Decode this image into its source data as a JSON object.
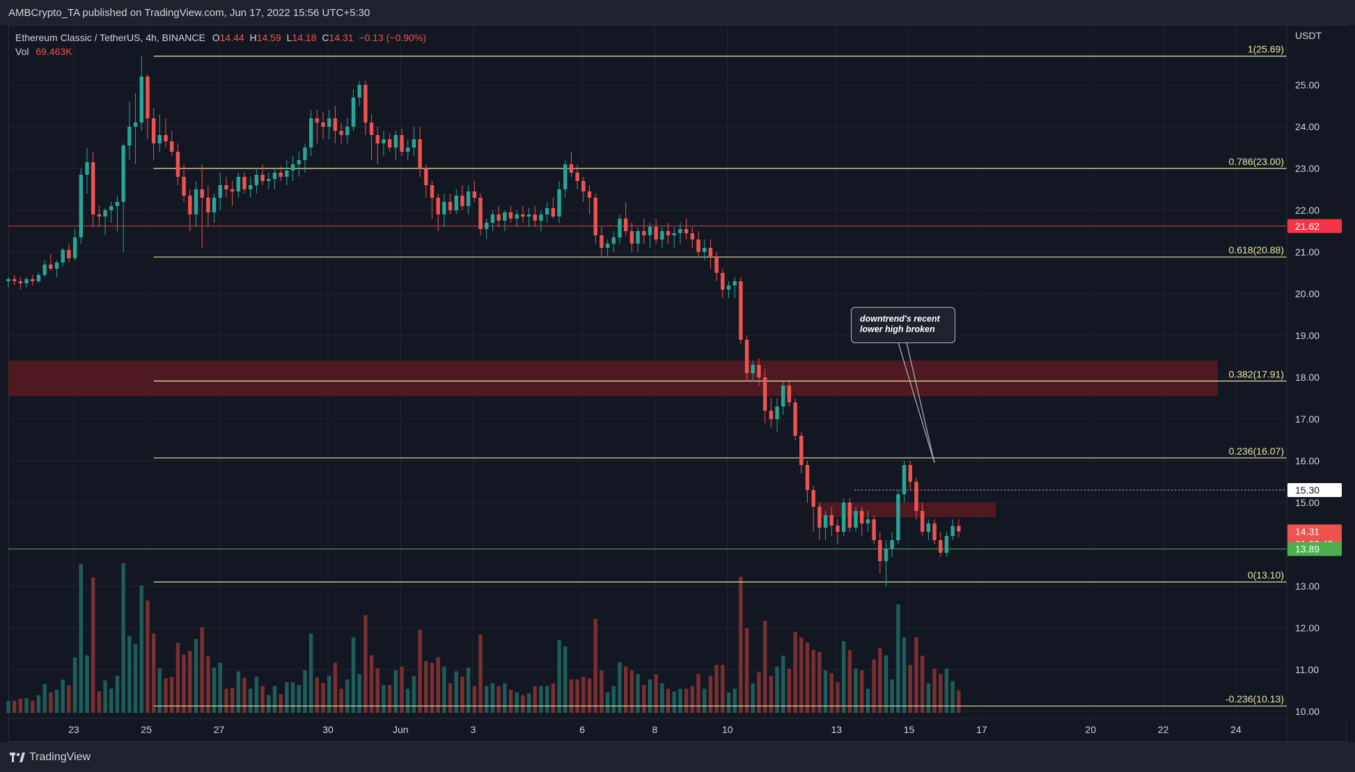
{
  "header": {
    "published_text": "AMBCrypto_TA published on TradingView.com, Jun 17, 2022 15:56 UTC+5:30"
  },
  "legend": {
    "symbol": "Ethereum Classic / TetherUS, 4h, BINANCE",
    "o_label": "O",
    "o_value": "14.44",
    "h_label": "H",
    "h_value": "14.59",
    "l_label": "L",
    "l_value": "14.18",
    "c_label": "C",
    "c_value": "14.31",
    "change": "−0.13 (−0.90%)",
    "vol_label": "Vol",
    "vol_value": "69.463K"
  },
  "callout": {
    "line1": "downtrend's recent",
    "line2": "lower high broken"
  },
  "footer": {
    "brand": "TradingView"
  },
  "colors": {
    "background": "#131722",
    "up": "#26a69a",
    "down": "#ef5350",
    "fib": "#e8e5a4",
    "resistance_line": "#f23645",
    "support_line": "#4caf50",
    "zone": "#5b1a22"
  },
  "chart_data": {
    "type": "candlestick",
    "title": "Ethereum Classic / TetherUS, 4h, BINANCE",
    "ylabel": "USDT",
    "y_unit": "USDT",
    "ylim": [
      9.9,
      26.4
    ],
    "y_ticks": [
      "25.00",
      "24.00",
      "23.00",
      "22.00",
      "21.00",
      "20.00",
      "19.00",
      "18.00",
      "17.00",
      "16.00",
      "15.00",
      "13.00",
      "12.00",
      "11.00",
      "10.00"
    ],
    "x_ticks": [
      {
        "label": "23",
        "day": 23
      },
      {
        "label": "25",
        "day": 25
      },
      {
        "label": "27",
        "day": 27
      },
      {
        "label": "30",
        "day": 30
      },
      {
        "label": "Jun",
        "day": 32
      },
      {
        "label": "3",
        "day": 34
      },
      {
        "label": "6",
        "day": 37
      },
      {
        "label": "8",
        "day": 39
      },
      {
        "label": "10",
        "day": 41
      },
      {
        "label": "13",
        "day": 44
      },
      {
        "label": "15",
        "day": 46
      },
      {
        "label": "17",
        "day": 48
      },
      {
        "label": "20",
        "day": 51
      },
      {
        "label": "22",
        "day": 53
      },
      {
        "label": "24",
        "day": 55
      }
    ],
    "x_domain_days": [
      21.2,
      56.4
    ],
    "fib_levels": [
      {
        "label": "1(25.69)",
        "value": 25.69
      },
      {
        "label": "0.786(23.00)",
        "value": 23.0
      },
      {
        "label": "0.618(20.88)",
        "value": 20.88
      },
      {
        "label": "0.382(17.91)",
        "value": 17.91
      },
      {
        "label": "0.236(16.07)",
        "value": 16.07
      },
      {
        "label": "0(13.10)",
        "value": 13.1
      },
      {
        "label": "-0.236(10.13)",
        "value": 10.13
      }
    ],
    "horizontal_lines": [
      {
        "name": "resistance",
        "value": 21.62,
        "label": "21.62",
        "color": "#f23645"
      },
      {
        "name": "support",
        "value": 13.89,
        "label": "13.89",
        "color": "#4caf50"
      }
    ],
    "dotted_level": {
      "value": 15.3,
      "label": "15.30"
    },
    "last_price": {
      "value": 14.31,
      "label": "14.31",
      "countdown": "01:33:48"
    },
    "zones": [
      {
        "name": "supply-zone-upper",
        "y_low": 17.55,
        "y_high": 18.4,
        "x_from_day": 21.2,
        "x_to_day": 54.5
      },
      {
        "name": "supply-zone-lower",
        "y_low": 14.65,
        "y_high": 15.0,
        "x_from_day": 43.5,
        "x_to_day": 48.4
      }
    ],
    "candles_4h_ohlc_start_day": 21.2,
    "candles": [
      [
        20.3,
        20.4,
        20.15,
        20.35
      ],
      [
        20.35,
        20.45,
        20.2,
        20.3
      ],
      [
        20.3,
        20.4,
        20.1,
        20.25
      ],
      [
        20.25,
        20.4,
        20.15,
        20.35
      ],
      [
        20.35,
        20.45,
        20.2,
        20.3
      ],
      [
        20.3,
        20.5,
        20.25,
        20.45
      ],
      [
        20.45,
        20.8,
        20.4,
        20.7
      ],
      [
        20.7,
        20.95,
        20.55,
        20.6
      ],
      [
        20.6,
        20.8,
        20.4,
        20.75
      ],
      [
        20.75,
        21.1,
        20.65,
        21.05
      ],
      [
        21.05,
        21.2,
        20.75,
        20.85
      ],
      [
        20.85,
        21.55,
        20.8,
        21.35
      ],
      [
        21.35,
        23.0,
        21.2,
        22.85
      ],
      [
        22.85,
        23.5,
        22.4,
        23.15
      ],
      [
        23.15,
        23.4,
        21.6,
        21.9
      ],
      [
        21.9,
        22.1,
        21.6,
        21.85
      ],
      [
        21.85,
        22.05,
        21.4,
        22.0
      ],
      [
        22.0,
        22.2,
        21.7,
        22.1
      ],
      [
        22.1,
        22.35,
        21.5,
        22.2
      ],
      [
        22.2,
        23.6,
        21.0,
        23.55
      ],
      [
        23.55,
        24.6,
        23.2,
        24.0
      ],
      [
        24.0,
        24.8,
        23.1,
        24.1
      ],
      [
        24.1,
        25.7,
        23.9,
        25.2
      ],
      [
        25.2,
        25.25,
        23.7,
        24.2
      ],
      [
        24.2,
        24.45,
        23.2,
        23.6
      ],
      [
        23.6,
        24.3,
        23.4,
        23.8
      ],
      [
        23.8,
        24.2,
        23.5,
        23.65
      ],
      [
        23.65,
        23.9,
        23.3,
        23.4
      ],
      [
        23.4,
        23.6,
        22.6,
        22.8
      ],
      [
        22.8,
        23.1,
        22.2,
        22.35
      ],
      [
        22.35,
        22.5,
        21.5,
        21.9
      ],
      [
        21.9,
        22.7,
        21.6,
        22.5
      ],
      [
        22.5,
        23.1,
        21.1,
        22.3
      ],
      [
        22.3,
        22.6,
        21.6,
        21.95
      ],
      [
        21.95,
        22.4,
        21.7,
        22.3
      ],
      [
        22.3,
        22.9,
        22.0,
        22.6
      ],
      [
        22.6,
        22.8,
        22.3,
        22.5
      ],
      [
        22.5,
        22.7,
        22.1,
        22.45
      ],
      [
        22.45,
        22.9,
        22.3,
        22.8
      ],
      [
        22.8,
        22.9,
        22.4,
        22.5
      ],
      [
        22.5,
        22.8,
        22.3,
        22.6
      ],
      [
        22.6,
        23.0,
        22.4,
        22.85
      ],
      [
        22.85,
        23.1,
        22.6,
        22.7
      ],
      [
        22.7,
        22.9,
        22.5,
        22.75
      ],
      [
        22.75,
        23.0,
        22.5,
        22.9
      ],
      [
        22.9,
        23.05,
        22.7,
        22.8
      ],
      [
        22.8,
        23.2,
        22.6,
        22.95
      ],
      [
        22.95,
        23.3,
        22.7,
        23.1
      ],
      [
        23.1,
        23.4,
        22.8,
        23.2
      ],
      [
        23.2,
        23.6,
        22.9,
        23.5
      ],
      [
        23.5,
        24.4,
        23.3,
        24.2
      ],
      [
        24.2,
        24.4,
        23.6,
        24.1
      ],
      [
        24.1,
        24.35,
        23.7,
        24.0
      ],
      [
        24.0,
        24.4,
        23.7,
        24.2
      ],
      [
        24.2,
        24.5,
        23.6,
        23.9
      ],
      [
        23.9,
        24.1,
        23.6,
        23.8
      ],
      [
        23.8,
        24.2,
        23.6,
        24.0
      ],
      [
        24.0,
        24.9,
        23.9,
        24.7
      ],
      [
        24.7,
        25.1,
        24.5,
        25.0
      ],
      [
        25.0,
        25.1,
        23.8,
        24.1
      ],
      [
        24.1,
        24.3,
        23.2,
        23.8
      ],
      [
        23.8,
        24.0,
        23.1,
        23.6
      ],
      [
        23.6,
        23.9,
        23.3,
        23.7
      ],
      [
        23.7,
        23.85,
        23.4,
        23.5
      ],
      [
        23.5,
        23.9,
        23.2,
        23.8
      ],
      [
        23.8,
        23.95,
        23.3,
        23.4
      ],
      [
        23.4,
        23.7,
        23.2,
        23.5
      ],
      [
        23.5,
        24.0,
        23.3,
        23.7
      ],
      [
        23.7,
        24.0,
        22.8,
        23.0
      ],
      [
        23.0,
        23.1,
        22.3,
        22.6
      ],
      [
        22.6,
        22.7,
        21.8,
        22.3
      ],
      [
        22.3,
        22.4,
        21.5,
        21.9
      ],
      [
        21.9,
        22.4,
        21.6,
        22.2
      ],
      [
        22.2,
        22.4,
        21.9,
        22.0
      ],
      [
        22.0,
        22.5,
        21.9,
        22.35
      ],
      [
        22.35,
        22.6,
        22.0,
        22.1
      ],
      [
        22.1,
        22.6,
        21.9,
        22.45
      ],
      [
        22.45,
        22.7,
        22.2,
        22.3
      ],
      [
        22.3,
        22.4,
        21.4,
        21.55
      ],
      [
        21.55,
        21.8,
        21.3,
        21.7
      ],
      [
        21.7,
        22.0,
        21.5,
        21.9
      ],
      [
        21.9,
        22.1,
        21.6,
        21.75
      ],
      [
        21.75,
        22.0,
        21.5,
        21.95
      ],
      [
        21.95,
        22.1,
        21.7,
        21.8
      ],
      [
        21.8,
        22.0,
        21.6,
        21.9
      ],
      [
        21.9,
        22.1,
        21.7,
        21.85
      ],
      [
        21.85,
        22.05,
        21.6,
        21.9
      ],
      [
        21.9,
        22.1,
        21.6,
        21.75
      ],
      [
        21.75,
        22.0,
        21.5,
        21.9
      ],
      [
        21.9,
        22.2,
        21.7,
        22.05
      ],
      [
        22.05,
        22.3,
        21.8,
        21.85
      ],
      [
        21.85,
        22.7,
        21.7,
        22.5
      ],
      [
        22.5,
        23.2,
        22.3,
        23.1
      ],
      [
        23.1,
        23.4,
        22.8,
        22.9
      ],
      [
        22.9,
        23.1,
        22.5,
        22.7
      ],
      [
        22.7,
        22.8,
        22.2,
        22.45
      ],
      [
        22.45,
        22.6,
        21.9,
        22.3
      ],
      [
        22.3,
        22.4,
        21.2,
        21.4
      ],
      [
        21.4,
        21.6,
        20.9,
        21.1
      ],
      [
        21.1,
        21.3,
        20.9,
        21.2
      ],
      [
        21.2,
        21.5,
        21.0,
        21.35
      ],
      [
        21.35,
        21.9,
        21.2,
        21.8
      ],
      [
        21.8,
        22.2,
        21.4,
        21.5
      ],
      [
        21.5,
        21.7,
        21.0,
        21.2
      ],
      [
        21.2,
        21.6,
        21.0,
        21.5
      ],
      [
        21.5,
        21.8,
        21.2,
        21.4
      ],
      [
        21.4,
        21.7,
        21.1,
        21.6
      ],
      [
        21.6,
        21.8,
        21.2,
        21.3
      ],
      [
        21.3,
        21.6,
        21.1,
        21.5
      ],
      [
        21.5,
        21.7,
        21.2,
        21.4
      ],
      [
        21.4,
        21.6,
        21.1,
        21.45
      ],
      [
        21.45,
        21.7,
        21.2,
        21.55
      ],
      [
        21.55,
        21.8,
        21.3,
        21.45
      ],
      [
        21.45,
        21.6,
        21.1,
        21.3
      ],
      [
        21.3,
        21.5,
        20.9,
        21.0
      ],
      [
        21.0,
        21.3,
        20.8,
        21.1
      ],
      [
        21.1,
        21.3,
        20.6,
        20.9
      ],
      [
        20.9,
        21.0,
        20.3,
        20.5
      ],
      [
        20.5,
        20.6,
        19.9,
        20.1
      ],
      [
        20.1,
        20.3,
        19.9,
        20.2
      ],
      [
        20.2,
        20.4,
        19.9,
        20.3
      ],
      [
        20.3,
        20.4,
        18.8,
        18.9
      ],
      [
        18.9,
        19.0,
        17.9,
        18.1
      ],
      [
        18.1,
        18.4,
        17.9,
        18.3
      ],
      [
        18.3,
        18.45,
        17.8,
        18.0
      ],
      [
        18.0,
        18.2,
        16.9,
        17.2
      ],
      [
        17.2,
        17.5,
        16.8,
        17.0
      ],
      [
        17.0,
        17.5,
        16.7,
        17.3
      ],
      [
        17.3,
        17.9,
        17.1,
        17.8
      ],
      [
        17.8,
        17.9,
        17.3,
        17.4
      ],
      [
        17.4,
        17.5,
        16.5,
        16.6
      ],
      [
        16.6,
        16.7,
        15.7,
        15.9
      ],
      [
        15.9,
        16.0,
        15.0,
        15.3
      ],
      [
        15.3,
        15.4,
        14.3,
        14.9
      ],
      [
        14.9,
        15.0,
        14.1,
        14.4
      ],
      [
        14.4,
        14.8,
        14.1,
        14.7
      ],
      [
        14.7,
        14.9,
        14.2,
        14.45
      ],
      [
        14.45,
        14.6,
        14.0,
        14.3
      ],
      [
        14.3,
        15.1,
        14.2,
        15.0
      ],
      [
        15.0,
        15.1,
        14.3,
        14.4
      ],
      [
        14.4,
        14.9,
        14.3,
        14.8
      ],
      [
        14.8,
        14.9,
        14.2,
        14.5
      ],
      [
        14.5,
        14.8,
        14.3,
        14.6
      ],
      [
        14.6,
        14.7,
        14.0,
        14.1
      ],
      [
        14.1,
        14.3,
        13.3,
        13.6
      ],
      [
        13.6,
        14.1,
        13.0,
        13.9
      ],
      [
        13.9,
        14.3,
        13.7,
        14.1
      ],
      [
        14.1,
        15.3,
        14.0,
        15.2
      ],
      [
        15.2,
        16.0,
        15.0,
        15.9
      ],
      [
        15.9,
        16.0,
        15.3,
        15.5
      ],
      [
        15.5,
        15.6,
        14.6,
        14.8
      ],
      [
        14.8,
        15.0,
        14.2,
        14.3
      ],
      [
        14.3,
        14.6,
        14.1,
        14.5
      ],
      [
        14.5,
        14.6,
        14.0,
        14.1
      ],
      [
        14.1,
        14.3,
        13.7,
        13.8
      ],
      [
        13.8,
        14.3,
        13.7,
        14.2
      ],
      [
        14.2,
        14.6,
        14.1,
        14.44
      ],
      [
        14.44,
        14.59,
        14.18,
        14.31
      ]
    ]
  }
}
